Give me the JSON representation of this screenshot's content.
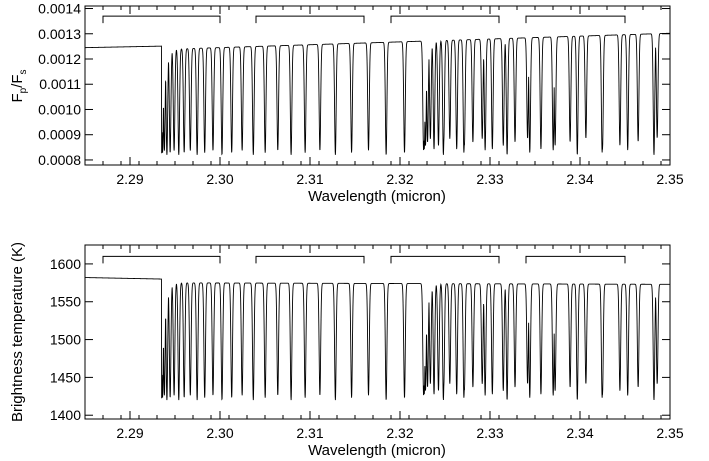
{
  "chart_data": [
    {
      "type": "line",
      "xlabel": "Wavelength (micron)",
      "ylabel_main": "F",
      "ylabel_sub1": "p",
      "ylabel_mid": "/F",
      "ylabel_sub2": "s",
      "xlim": [
        2.285,
        2.35
      ],
      "ylim": [
        0.00078,
        0.00141
      ],
      "x_ticks": [
        "2.29",
        "2.30",
        "2.31",
        "2.32",
        "2.33",
        "2.34",
        "2.35"
      ],
      "y_ticks": [
        "0.0008",
        "0.0009",
        "0.0010",
        "0.0011",
        "0.0012",
        "0.0013",
        "0.0014"
      ],
      "continuum": {
        "x": [
          2.285,
          2.2935,
          2.2937,
          2.35
        ],
        "y": [
          0.001245,
          0.001251,
          0.001238,
          0.001302
        ]
      },
      "band_head_x": 2.2935,
      "second_band_head_x": 2.3227,
      "line_depth_min": 0.00082,
      "brackets": [
        [
          2.287,
          2.3
        ],
        [
          2.304,
          2.316
        ],
        [
          2.319,
          2.331
        ],
        [
          2.334,
          2.345
        ]
      ],
      "bracket_level": 0.00137
    },
    {
      "type": "line",
      "xlabel": "Wavelength (micron)",
      "ylabel": "Brightness temperature (K)",
      "xlim": [
        2.285,
        2.35
      ],
      "ylim": [
        1395,
        1625
      ],
      "x_ticks": [
        "2.29",
        "2.30",
        "2.31",
        "2.32",
        "2.33",
        "2.34",
        "2.35"
      ],
      "y_ticks": [
        "1400",
        "1450",
        "1500",
        "1550",
        "1600"
      ],
      "continuum": {
        "x": [
          2.285,
          2.2935,
          2.2937,
          2.35
        ],
        "y": [
          1582,
          1580,
          1575,
          1573
        ]
      },
      "band_head_x": 2.2935,
      "second_band_head_x": 2.3227,
      "line_depth_min": 1420,
      "brackets": [
        [
          2.287,
          2.3
        ],
        [
          2.304,
          2.316
        ],
        [
          2.319,
          2.331
        ],
        [
          2.334,
          2.345
        ]
      ],
      "bracket_level": 1610
    }
  ]
}
